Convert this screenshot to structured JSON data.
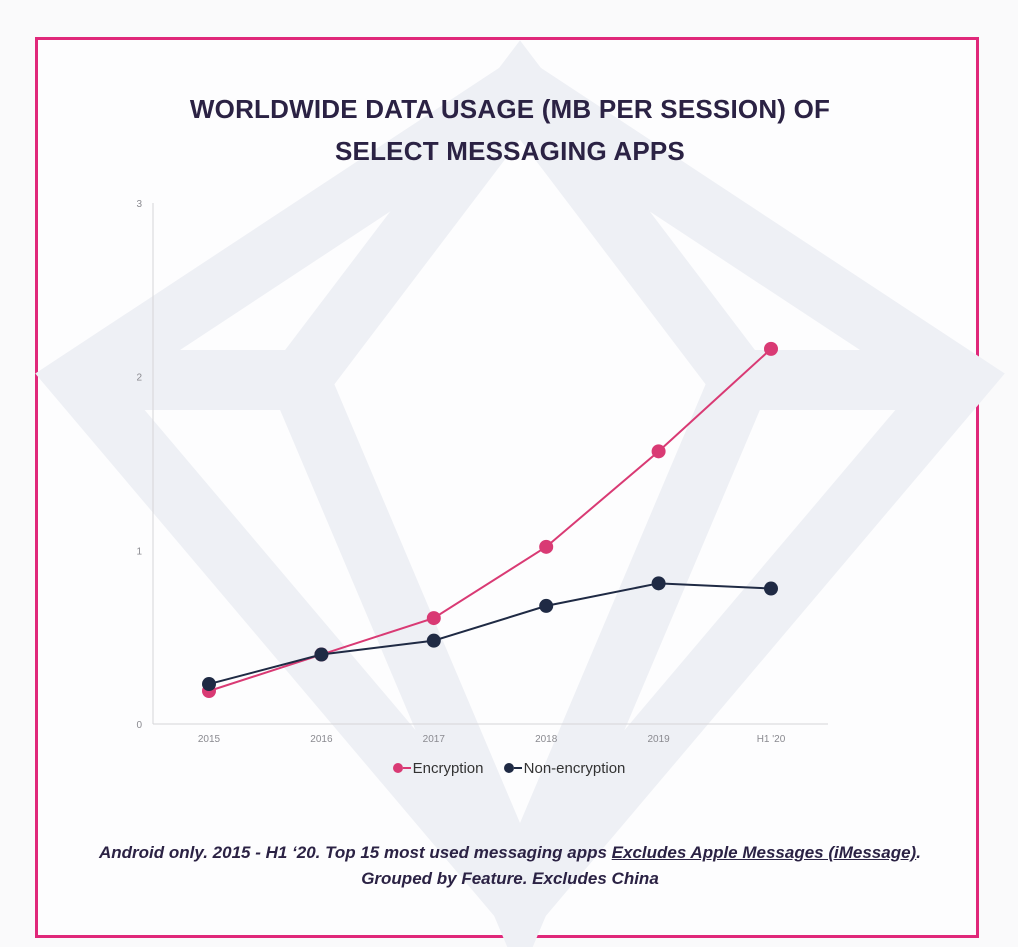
{
  "frame_color": "#e0287a",
  "title_lines": [
    "WORLDWIDE DATA USAGE (MB PER SESSION) OF",
    "SELECT MESSAGING APPS"
  ],
  "chart_data": {
    "type": "line",
    "categories": [
      "2015",
      "2016",
      "2017",
      "2018",
      "2019",
      "H1 '20"
    ],
    "series": [
      {
        "name": "Encryption",
        "color": "#d93a74",
        "values": [
          0.19,
          0.4,
          0.61,
          1.02,
          1.57,
          2.16
        ]
      },
      {
        "name": "Non-encryption",
        "color": "#1f2a44",
        "values": [
          0.23,
          0.4,
          0.48,
          0.68,
          0.81,
          0.78
        ]
      }
    ],
    "ylim": [
      0,
      3
    ],
    "yticks": [
      "0",
      "1",
      "2",
      "3"
    ],
    "grid": false,
    "legend_position": "bottom"
  },
  "footnote": {
    "text_before": "Android only. 2015 - H1 ‘20. Top 15 most used messaging apps ",
    "link": "Excludes Apple Messages (iMessage)",
    "text_after": ". Grouped by Feature. Excludes China"
  }
}
